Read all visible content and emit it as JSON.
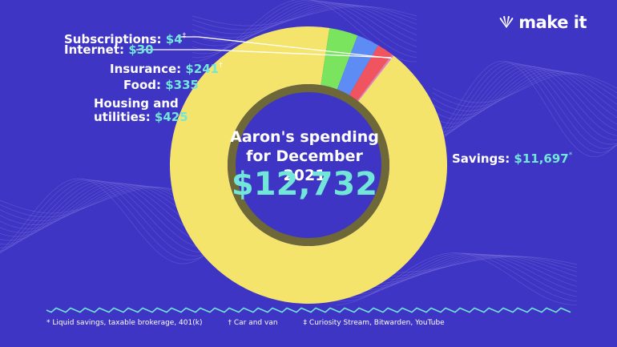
{
  "brand": {
    "name": "make it",
    "logo_icon": "peacock-icon"
  },
  "chart_data": {
    "type": "pie",
    "title": "Aaron's spending for December 2021",
    "total": "$12,732",
    "slices": [
      {
        "name": "Savings",
        "value": 11697,
        "label": "Savings:",
        "value_label": "$11,697",
        "mark": "*",
        "color": "#f5e46c"
      },
      {
        "name": "Housing and utilities",
        "value": 425,
        "label": "Housing and utilities:",
        "value_label": "$425",
        "mark": "",
        "color": "#7be45e"
      },
      {
        "name": "Food",
        "value": 335,
        "label": "Food:",
        "value_label": "$335",
        "mark": "",
        "color": "#5d8cf5"
      },
      {
        "name": "Insurance",
        "value": 241,
        "label": "Insurance:",
        "value_label": "$241",
        "mark": "†",
        "color": "#f0545e"
      },
      {
        "name": "Internet",
        "value": 30,
        "label": "Internet:",
        "value_label": "$30",
        "mark": "",
        "color": "#f07aa8"
      },
      {
        "name": "Subscriptions",
        "value": 4,
        "label": "Subscriptions:",
        "value_label": "$4",
        "mark": "‡",
        "color": "#ffffff"
      }
    ]
  },
  "labels": {
    "housing_line1": "Housing and",
    "housing_line2": "utilities:"
  },
  "footnotes": [
    "* Liquid savings, taxable brokerage, 401(k)",
    "† Car and van",
    "‡ Curiosity Stream, Bitwarden, YouTube"
  ],
  "colors": {
    "background": "#3f35c4",
    "accent_teal": "#72e6d8",
    "inner_ring": "#6e6838"
  }
}
